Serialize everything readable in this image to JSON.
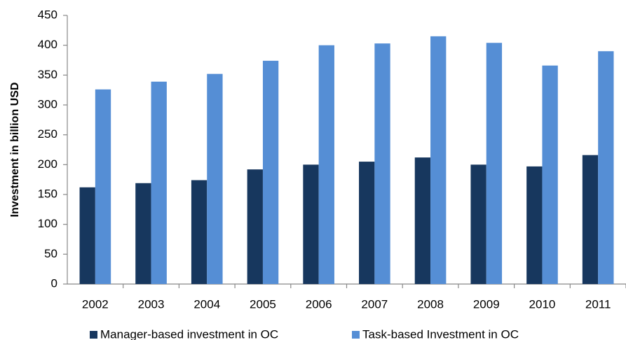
{
  "chart_data": {
    "type": "bar",
    "y_label": "Investment in billion USD",
    "categories": [
      "2002",
      "2003",
      "2004",
      "2005",
      "2006",
      "2007",
      "2008",
      "2009",
      "2010",
      "2011"
    ],
    "series": [
      {
        "name": "Manager-based investment in OC",
        "color": "#17375e",
        "values": [
          162,
          169,
          174,
          192,
          200,
          205,
          212,
          200,
          197,
          216
        ]
      },
      {
        "name": "Task-based Investment in OC",
        "color": "#558ed5",
        "values": [
          326,
          339,
          352,
          374,
          400,
          403,
          415,
          404,
          366,
          390
        ]
      }
    ],
    "ylim": [
      0,
      450
    ],
    "yticks": [
      0,
      50,
      100,
      150,
      200,
      250,
      300,
      350,
      400,
      450
    ],
    "grid": false
  }
}
